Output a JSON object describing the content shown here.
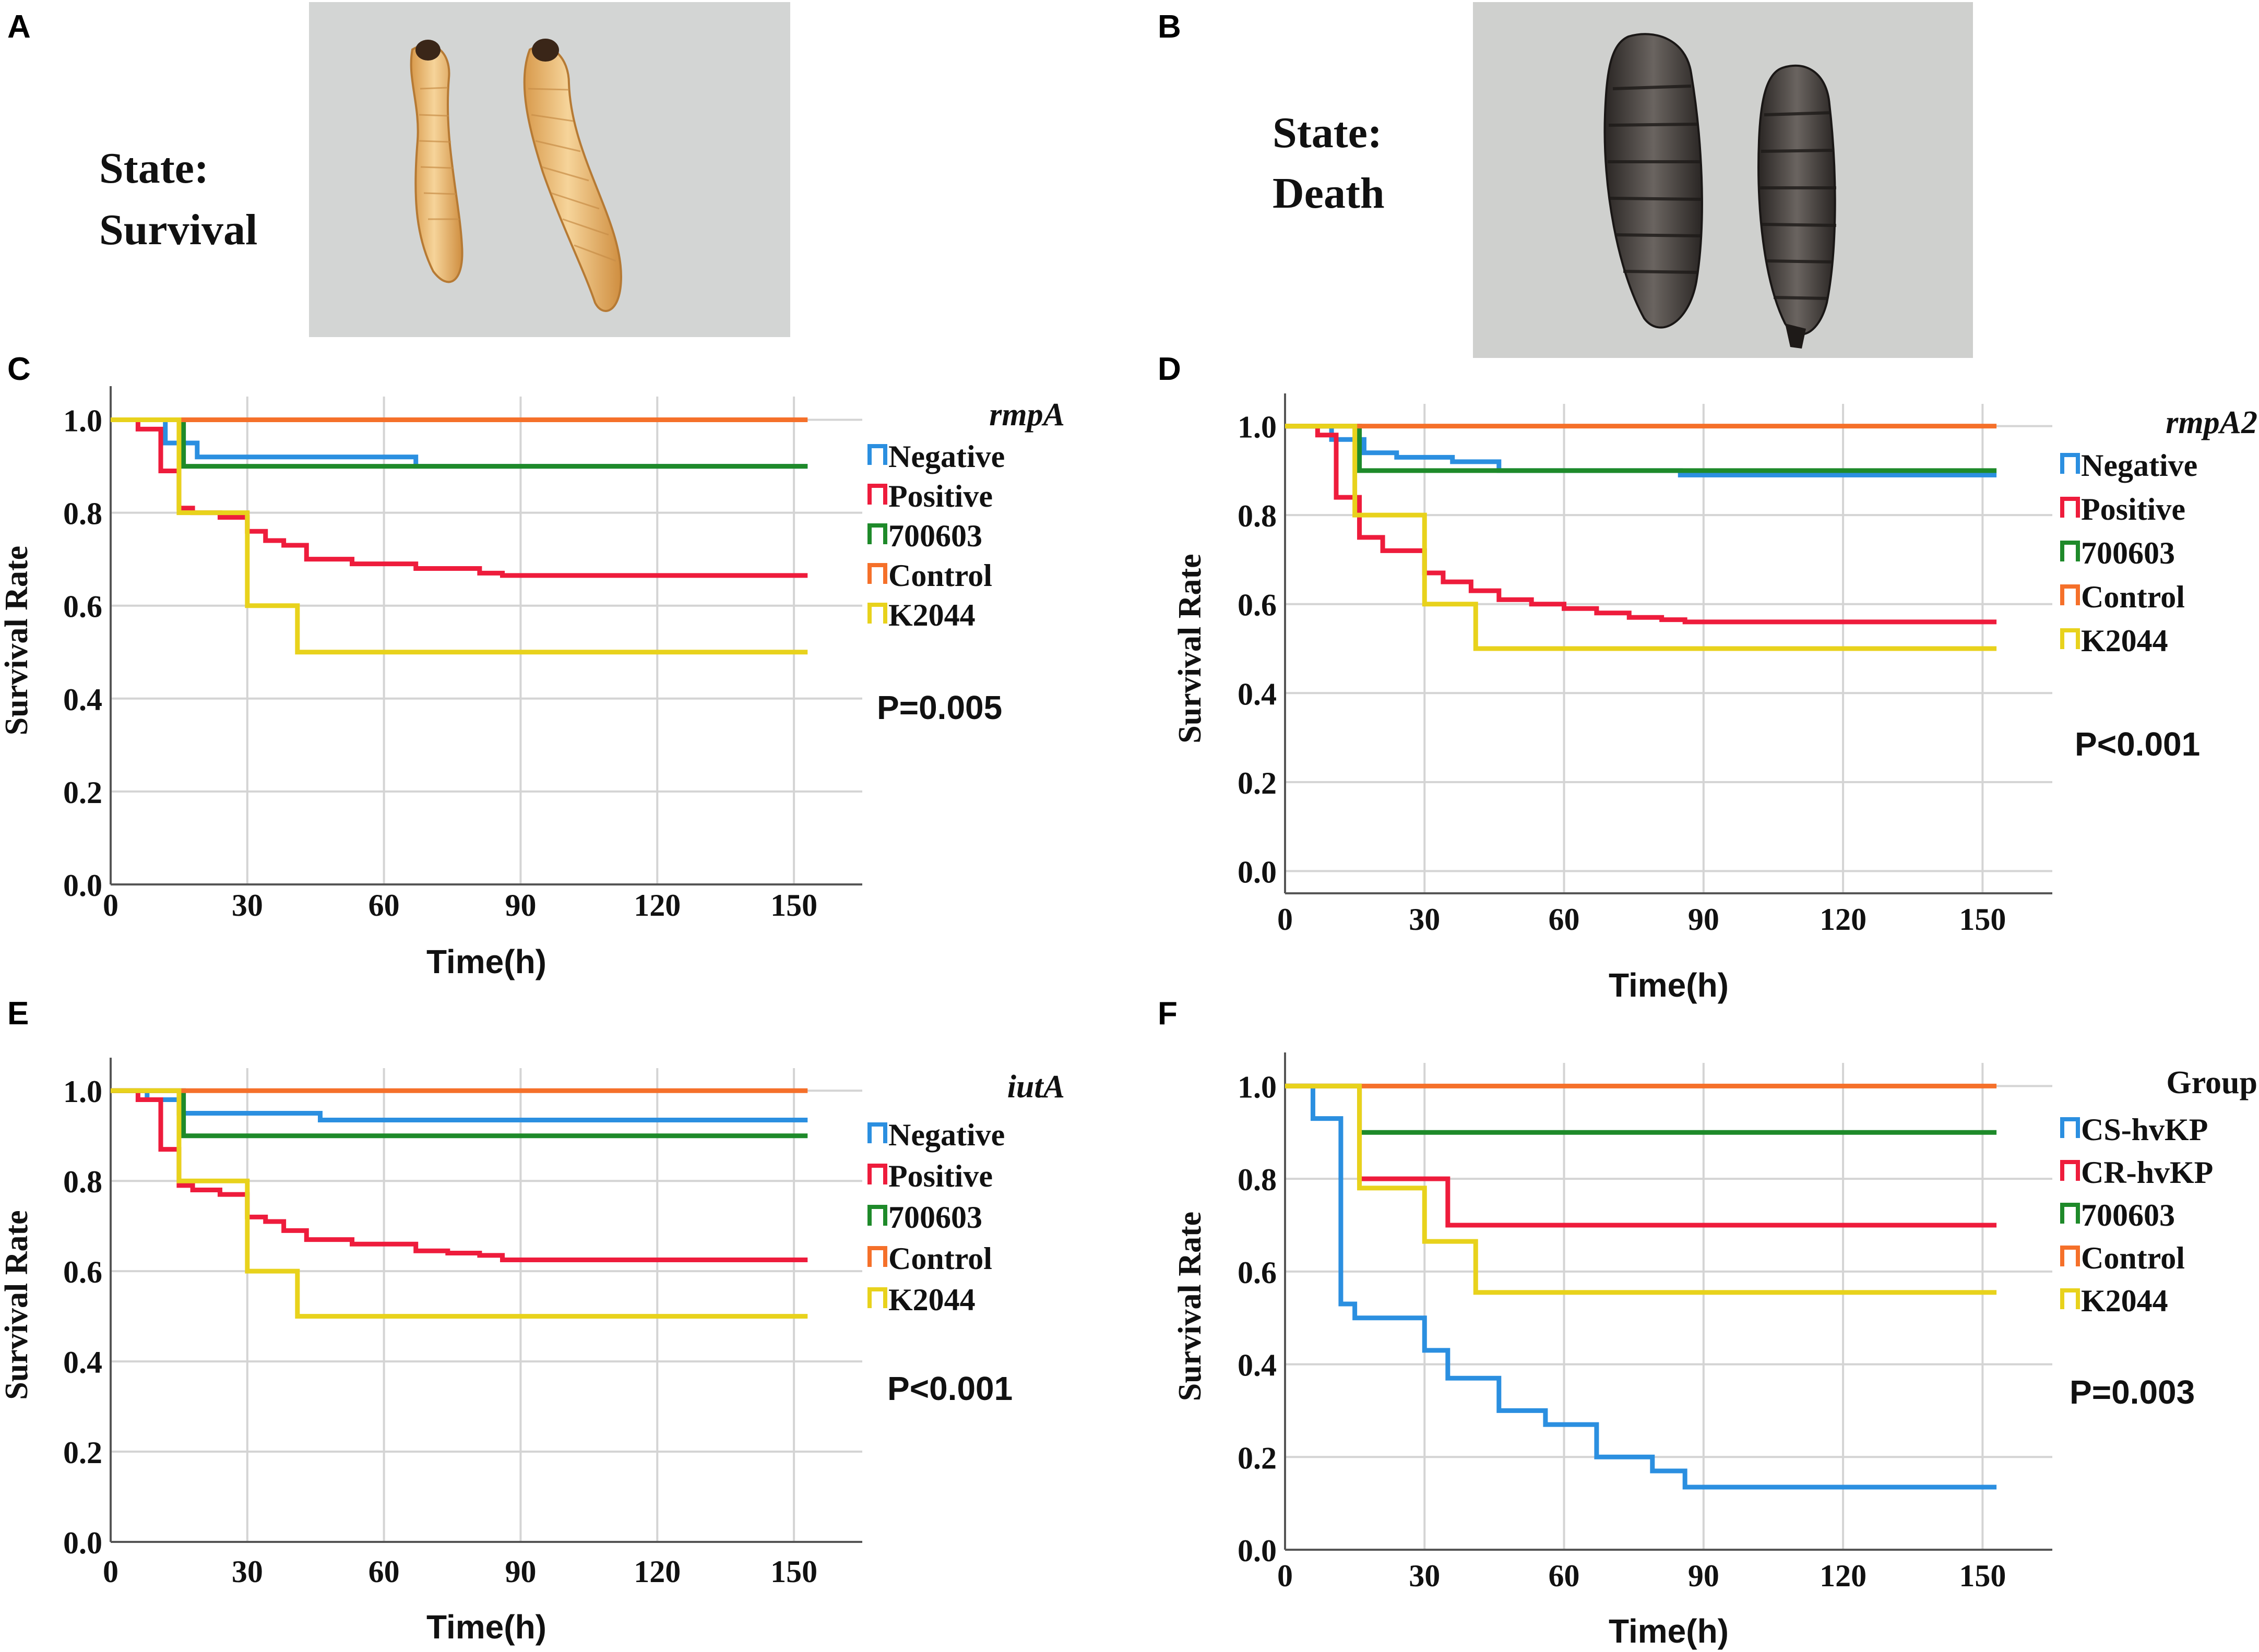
{
  "figure": {
    "panels": [
      {
        "letter": "A",
        "state_label": "State:",
        "state_value": "Survival",
        "photo": "two-live-larvae"
      },
      {
        "letter": "B",
        "state_label": "State:",
        "state_value": "Death",
        "photo": "two-dead-larvae"
      }
    ]
  },
  "colors": {
    "blue": "#2b8fe0",
    "red": "#ee1c3c",
    "green": "#1e8a2a",
    "orange": "#f5702a",
    "yellow": "#e8d21c",
    "grid": "#d4d4d4",
    "photo_a_bg": "#d3d5d4",
    "photo_b_bg": "#cfd0ce"
  },
  "chart_data": [
    {
      "letter": "C",
      "type": "line",
      "step": true,
      "xlabel": "Time(h)",
      "ylabel": "Survival Rate",
      "xlim": [
        0,
        165
      ],
      "ylim": [
        0,
        1.05
      ],
      "xticks": [
        0,
        30,
        60,
        90,
        120,
        150
      ],
      "yticks": [
        "0.0",
        "0.2",
        "0.4",
        "0.6",
        "0.8",
        "1.0"
      ],
      "legend_title": "rmpA",
      "legend_title_italic": true,
      "pvalue": "P=0.005",
      "series": [
        {
          "name": "Negative",
          "color": "#2b8fe0",
          "x": [
            0,
            12,
            19,
            67,
            153
          ],
          "y": [
            1.0,
            0.95,
            0.92,
            0.9,
            0.9
          ]
        },
        {
          "name": "Positive",
          "color": "#ee1c3c",
          "x": [
            0,
            6,
            11,
            15,
            18,
            24,
            30,
            34,
            38,
            43,
            53,
            60,
            67,
            74,
            81,
            86,
            153
          ],
          "y": [
            1.0,
            0.98,
            0.89,
            0.81,
            0.8,
            0.79,
            0.76,
            0.74,
            0.73,
            0.7,
            0.69,
            0.69,
            0.68,
            0.68,
            0.67,
            0.665,
            0.665
          ]
        },
        {
          "name": "700603",
          "color": "#1e8a2a",
          "x": [
            0,
            16,
            153
          ],
          "y": [
            1.0,
            0.9,
            0.9
          ]
        },
        {
          "name": "Control",
          "color": "#f5702a",
          "x": [
            0,
            153
          ],
          "y": [
            1.0,
            1.0
          ]
        },
        {
          "name": "K2044",
          "color": "#e8d21c",
          "x": [
            0,
            15,
            30,
            41,
            153
          ],
          "y": [
            1.0,
            0.8,
            0.6,
            0.5,
            0.5
          ]
        }
      ]
    },
    {
      "letter": "D",
      "type": "line",
      "step": true,
      "xlabel": "Time(h)",
      "ylabel": "Survival Rate",
      "xlim": [
        0,
        165
      ],
      "ylim": [
        -0.05,
        1.05
      ],
      "xticks": [
        0,
        30,
        60,
        90,
        120,
        150
      ],
      "yticks": [
        "0.0",
        "0.2",
        "0.4",
        "0.6",
        "0.8",
        "1.0"
      ],
      "legend_title": "rmpA2",
      "legend_title_italic": true,
      "pvalue": "P<0.001",
      "series": [
        {
          "name": "Negative",
          "color": "#2b8fe0",
          "x": [
            0,
            10,
            17,
            24,
            36,
            46,
            85,
            153
          ],
          "y": [
            1.0,
            0.97,
            0.94,
            0.93,
            0.92,
            0.9,
            0.89,
            0.89
          ]
        },
        {
          "name": "Positive",
          "color": "#ee1c3c",
          "x": [
            0,
            7,
            11,
            16,
            21,
            30,
            34,
            40,
            46,
            53,
            60,
            67,
            74,
            81,
            86,
            153
          ],
          "y": [
            1.0,
            0.98,
            0.84,
            0.75,
            0.72,
            0.67,
            0.65,
            0.63,
            0.61,
            0.6,
            0.59,
            0.58,
            0.57,
            0.565,
            0.56,
            0.56
          ]
        },
        {
          "name": "700603",
          "color": "#1e8a2a",
          "x": [
            0,
            16,
            153
          ],
          "y": [
            1.0,
            0.9,
            0.9
          ]
        },
        {
          "name": "Control",
          "color": "#f5702a",
          "x": [
            0,
            153
          ],
          "y": [
            1.0,
            1.0
          ]
        },
        {
          "name": "K2044",
          "color": "#e8d21c",
          "x": [
            0,
            15,
            30,
            41,
            153
          ],
          "y": [
            1.0,
            0.8,
            0.6,
            0.5,
            0.5
          ]
        }
      ]
    },
    {
      "letter": "E",
      "type": "line",
      "step": true,
      "xlabel": "Time(h)",
      "ylabel": "Survival Rate",
      "xlim": [
        0,
        165
      ],
      "ylim": [
        0,
        1.05
      ],
      "xticks": [
        0,
        30,
        60,
        90,
        120,
        150
      ],
      "yticks": [
        "0.0",
        "0.2",
        "0.4",
        "0.6",
        "0.8",
        "1.0"
      ],
      "legend_title": "iutA",
      "legend_title_italic": true,
      "pvalue": "P<0.001",
      "series": [
        {
          "name": "Negative",
          "color": "#2b8fe0",
          "x": [
            0,
            8,
            15,
            46,
            153
          ],
          "y": [
            1.0,
            0.98,
            0.95,
            0.935,
            0.935
          ]
        },
        {
          "name": "Positive",
          "color": "#ee1c3c",
          "x": [
            0,
            6,
            11,
            15,
            18,
            24,
            30,
            34,
            38,
            43,
            53,
            60,
            67,
            74,
            81,
            86,
            153
          ],
          "y": [
            1.0,
            0.98,
            0.87,
            0.79,
            0.78,
            0.77,
            0.72,
            0.71,
            0.69,
            0.67,
            0.66,
            0.66,
            0.645,
            0.64,
            0.635,
            0.625,
            0.625
          ]
        },
        {
          "name": "700603",
          "color": "#1e8a2a",
          "x": [
            0,
            16,
            153
          ],
          "y": [
            1.0,
            0.9,
            0.9
          ]
        },
        {
          "name": "Control",
          "color": "#f5702a",
          "x": [
            0,
            153
          ],
          "y": [
            1.0,
            1.0
          ]
        },
        {
          "name": "K2044",
          "color": "#e8d21c",
          "x": [
            0,
            15,
            30,
            41,
            153
          ],
          "y": [
            1.0,
            0.8,
            0.6,
            0.5,
            0.5
          ]
        }
      ]
    },
    {
      "letter": "F",
      "type": "line",
      "step": true,
      "xlabel": "Time(h)",
      "ylabel": "Survival Rate",
      "xlim": [
        0,
        165
      ],
      "ylim": [
        0,
        1.05
      ],
      "xticks": [
        0,
        30,
        60,
        90,
        120,
        150
      ],
      "yticks": [
        "0.0",
        "0.2",
        "0.4",
        "0.6",
        "0.8",
        "1.0"
      ],
      "legend_title": "Group",
      "legend_title_italic": false,
      "pvalue": "P=0.003",
      "series": [
        {
          "name": "CS-hvKP",
          "color": "#2b8fe0",
          "x": [
            0,
            6,
            12,
            15,
            30,
            35,
            46,
            56,
            67,
            79,
            86,
            153
          ],
          "y": [
            1.0,
            0.93,
            0.53,
            0.5,
            0.43,
            0.37,
            0.3,
            0.27,
            0.2,
            0.17,
            0.135,
            0.135
          ]
        },
        {
          "name": "CR-hvKP",
          "color": "#ee1c3c",
          "x": [
            0,
            16,
            35,
            153
          ],
          "y": [
            1.0,
            0.8,
            0.7,
            0.7
          ]
        },
        {
          "name": "700603",
          "color": "#1e8a2a",
          "x": [
            0,
            16,
            153
          ],
          "y": [
            1.0,
            0.9,
            0.9
          ]
        },
        {
          "name": "Control",
          "color": "#f5702a",
          "x": [
            0,
            153
          ],
          "y": [
            1.0,
            1.0
          ]
        },
        {
          "name": "K2044",
          "color": "#e8d21c",
          "x": [
            0,
            16,
            30,
            41,
            153
          ],
          "y": [
            1.0,
            0.78,
            0.665,
            0.555,
            0.555
          ]
        }
      ]
    }
  ]
}
